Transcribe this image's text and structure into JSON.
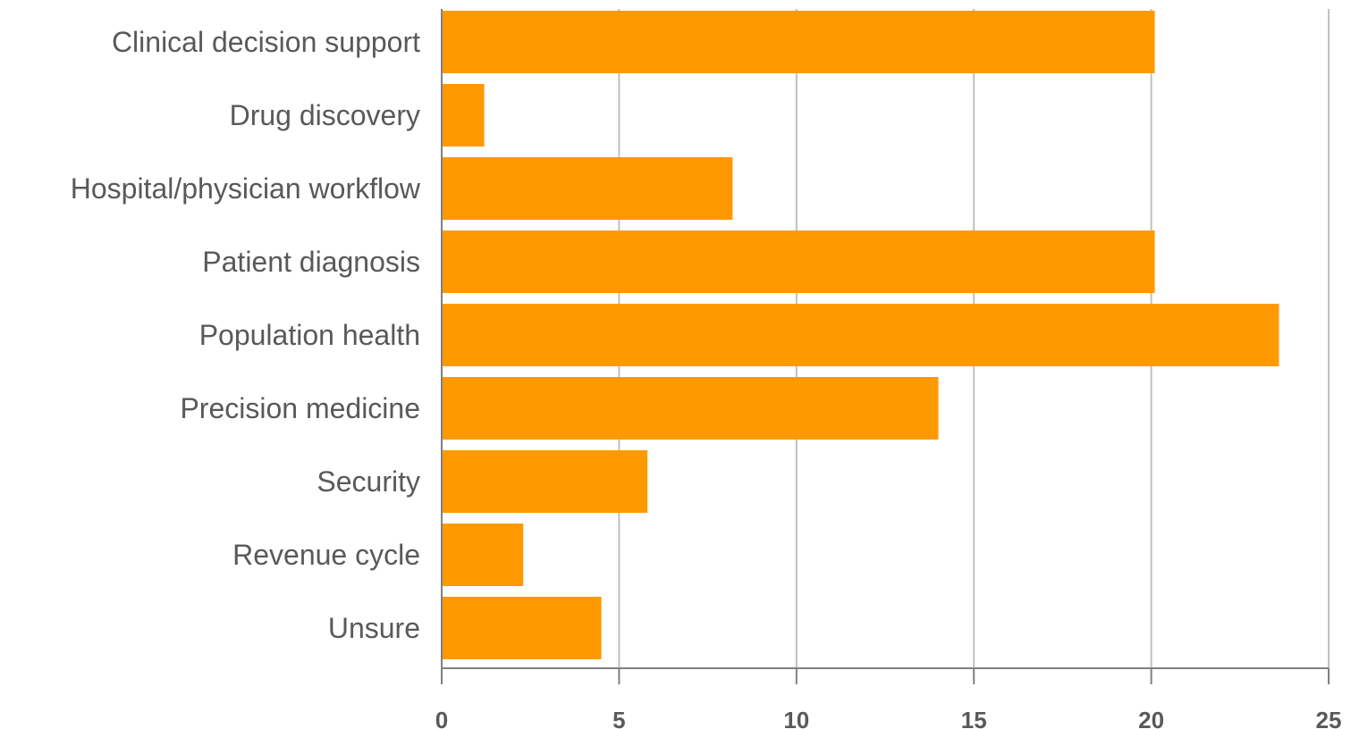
{
  "chart_data": {
    "type": "bar",
    "orientation": "horizontal",
    "categories": [
      "Clinical decision support",
      "Drug discovery",
      "Hospital/physician workflow",
      "Patient diagnosis",
      "Population health",
      "Precision medicine",
      "Security",
      "Revenue cycle",
      "Unsure"
    ],
    "values": [
      20.1,
      1.2,
      8.2,
      20.1,
      23.6,
      14.0,
      5.8,
      2.3,
      4.5
    ],
    "xlim": [
      0,
      25
    ],
    "xticks": [
      "0",
      "5",
      "10",
      "15",
      "20",
      "25"
    ],
    "title": "",
    "xlabel": "",
    "ylabel": "",
    "grid": true,
    "legend": "none",
    "colors": {
      "bar": "#ff9900",
      "grid": "#c0c0c0",
      "axis": "#808080",
      "text": "#595959"
    }
  }
}
